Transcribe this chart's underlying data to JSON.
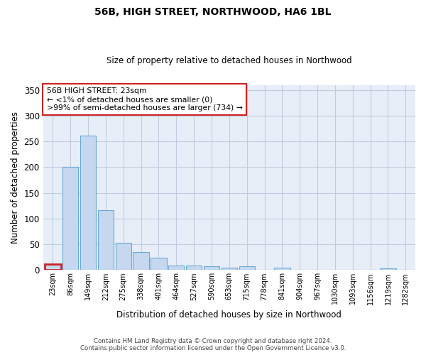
{
  "title": "56B, HIGH STREET, NORTHWOOD, HA6 1BL",
  "subtitle": "Size of property relative to detached houses in Northwood",
  "xlabel": "Distribution of detached houses by size in Northwood",
  "ylabel": "Number of detached properties",
  "bar_color": "#c5d8f0",
  "bar_edge_color": "#6aaad4",
  "background_color": "#e8eef8",
  "categories": [
    "23sqm",
    "86sqm",
    "149sqm",
    "212sqm",
    "275sqm",
    "338sqm",
    "401sqm",
    "464sqm",
    "527sqm",
    "590sqm",
    "653sqm",
    "715sqm",
    "778sqm",
    "841sqm",
    "904sqm",
    "967sqm",
    "1030sqm",
    "1093sqm",
    "1156sqm",
    "1219sqm",
    "1282sqm"
  ],
  "values": [
    12,
    200,
    262,
    117,
    53,
    35,
    24,
    9,
    9,
    7,
    5,
    8,
    0,
    4,
    0,
    0,
    0,
    0,
    0,
    3,
    0
  ],
  "ylim": [
    0,
    360
  ],
  "yticks": [
    0,
    50,
    100,
    150,
    200,
    250,
    300,
    350
  ],
  "annotation_line1": "56B HIGH STREET: 23sqm",
  "annotation_line2": "← <1% of detached houses are smaller (0)",
  "annotation_line3": ">99% of semi-detached houses are larger (734) →",
  "footer_line1": "Contains HM Land Registry data © Crown copyright and database right 2024.",
  "footer_line2": "Contains public sector information licensed under the Open Government Licence v3.0.",
  "grid_color": "#c0cce0",
  "highlight_bar_index": 0,
  "highlight_bar_edge_color": "#cc2222",
  "ann_box_edge_color": "#cc2222"
}
